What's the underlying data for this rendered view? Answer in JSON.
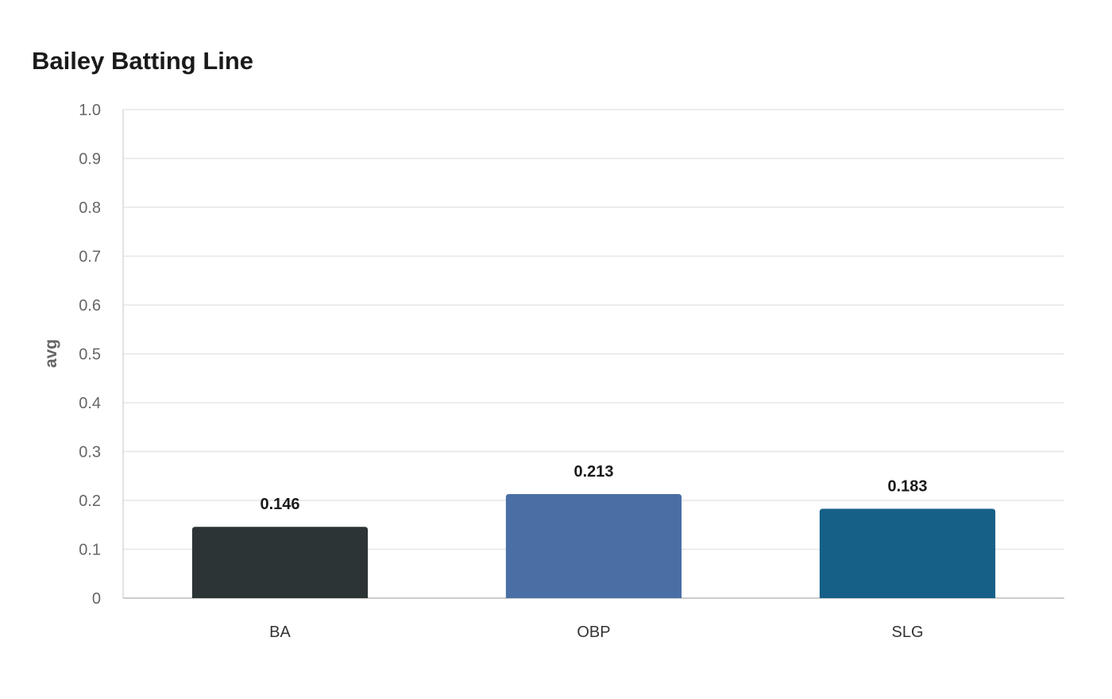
{
  "chart_data": {
    "type": "bar",
    "title": "Bailey Batting Line",
    "xlabel": "",
    "ylabel": "avg",
    "categories": [
      "BA",
      "OBP",
      "SLG"
    ],
    "values": [
      0.146,
      0.213,
      0.183
    ],
    "data_labels": [
      "0.146",
      "0.213",
      "0.183"
    ],
    "colors": [
      "#2d3436",
      "#4a6fa5",
      "#166088"
    ],
    "ylim": [
      0,
      1.0
    ],
    "yticks": [
      0,
      0.1,
      0.2,
      0.3,
      0.4,
      0.5,
      0.6,
      0.7,
      0.8,
      0.9,
      1.0
    ],
    "ytick_labels": [
      "0",
      "0.1",
      "0.2",
      "0.3",
      "0.4",
      "0.5",
      "0.6",
      "0.7",
      "0.8",
      "0.9",
      "1.0"
    ],
    "grid": true,
    "legend": "none"
  }
}
